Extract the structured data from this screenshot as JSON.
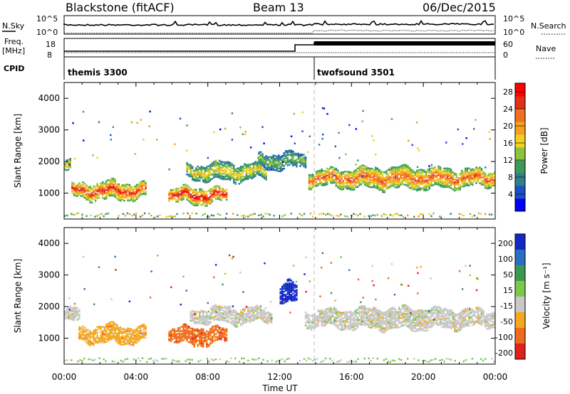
{
  "header": {
    "site": "Blackstone (fitACF)",
    "beam": "Beam 13",
    "date": "06/Dec/2015"
  },
  "summary": {
    "nsky_label": "N.Sky",
    "nsky_ticks": [
      "10^5",
      "10^0"
    ],
    "nsearch_label": "N.Search",
    "nsearch_ticks": [
      "10^5",
      "10^0"
    ],
    "freq_label": "Freq.",
    "freq_unit": "[MHz]",
    "freq_ticks": [
      "18",
      "8"
    ],
    "nave_label": "Nave",
    "nave_ticks": [
      "60",
      "0"
    ],
    "cpid_label": "CPID",
    "cpid_segments": [
      {
        "name": "themis 3300",
        "start_hour": 0
      },
      {
        "name": "twofsound 3501",
        "start_hour": 14
      }
    ]
  },
  "xaxis": {
    "label": "Time UT",
    "ticks": [
      "00:00",
      "04:00",
      "08:00",
      "12:00",
      "16:00",
      "20:00",
      "00:00"
    ],
    "range_hours": [
      0,
      24
    ]
  },
  "chart_data": [
    {
      "type": "heatmap",
      "panel": "power",
      "ylabel": "Slant Range [km]",
      "yticks": [
        "1000",
        "2000",
        "3000",
        "4000"
      ],
      "ylim": [
        180,
        4500
      ],
      "colorbar_label": "Power [dB]",
      "colorbar_ticks": [
        "4",
        "8",
        "12",
        "16",
        "20",
        "24",
        "28"
      ],
      "colorbar_range": [
        0,
        30
      ],
      "colorbar_colors": [
        "#0000ff",
        "#1a4fc8",
        "#2f7e8c",
        "#3f9a5a",
        "#8cc23c",
        "#f0d020",
        "#f5a020",
        "#f07020",
        "#e03018",
        "#ff0000"
      ],
      "bands": [
        {
          "t0": 0.0,
          "t1": 0.4,
          "r_center": 1800,
          "r_width": 350,
          "value": 18
        },
        {
          "t0": 0.4,
          "t1": 4.6,
          "r_center": 1050,
          "r_width": 550,
          "value": 24
        },
        {
          "t0": 5.8,
          "t1": 9.0,
          "r_center": 900,
          "r_width": 500,
          "value": 26
        },
        {
          "t0": 6.8,
          "t1": 11.2,
          "r_center": 1650,
          "r_width": 550,
          "value": 16
        },
        {
          "t0": 10.8,
          "t1": 13.4,
          "r_center": 2000,
          "r_width": 500,
          "value": 12
        },
        {
          "t0": 13.6,
          "t1": 24.0,
          "r_center": 1450,
          "r_width": 650,
          "value": 22
        }
      ]
    },
    {
      "type": "heatmap",
      "panel": "velocity",
      "ylabel": "Slant Range [km]",
      "yticks": [
        "1000",
        "2000",
        "3000",
        "4000"
      ],
      "ylim": [
        180,
        4500
      ],
      "colorbar_label": "Velocity [m s⁻¹]",
      "colorbar_ticks": [
        "200",
        "100",
        "50",
        "15",
        "-15",
        "-50",
        "-100",
        "-200"
      ],
      "colorbar_colors": [
        "#1428c8",
        "#2a6fc4",
        "#3c9a50",
        "#7ac94a",
        "#c8c8c8",
        "#f5a81c",
        "#f06a1c",
        "#e0201a"
      ],
      "bands": [
        {
          "t0": 0.0,
          "t1": 0.8,
          "r_center": 1700,
          "r_width": 450,
          "class": 4
        },
        {
          "t0": 0.8,
          "t1": 4.6,
          "r_center": 1100,
          "r_width": 550,
          "class": 5
        },
        {
          "t0": 5.8,
          "t1": 9.0,
          "r_center": 1050,
          "r_width": 550,
          "class": 6
        },
        {
          "t0": 7.0,
          "t1": 11.5,
          "r_center": 1700,
          "r_width": 500,
          "class": 4
        },
        {
          "t0": 12.0,
          "t1": 12.9,
          "r_center": 2400,
          "r_width": 700,
          "class": 0
        },
        {
          "t0": 13.4,
          "t1": 24.0,
          "r_center": 1600,
          "r_width": 650,
          "class": 4
        }
      ]
    }
  ]
}
